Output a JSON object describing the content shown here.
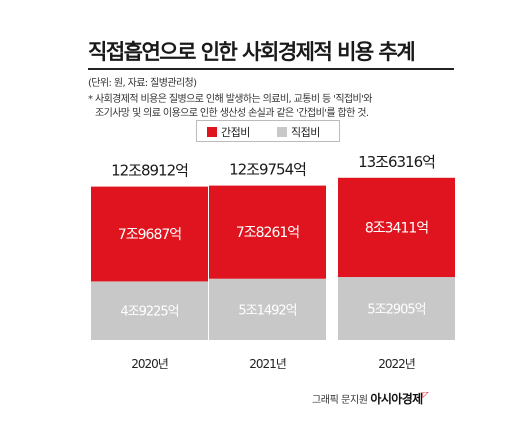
{
  "title": "직접흡연으로 인한 사회경제적 비용 추계",
  "notes": {
    "unit_source": "(단위: 원, 자료: 질병관리청)",
    "footnote_line1": "* 사회경제적 비용은 질병으로 인해 발생하는 의료비, 교통비 등 '직접비'와",
    "footnote_line2": "조기사망 및 의료 이용으로 인한 생산성 손실과 같은 '간접비'를 합한 것."
  },
  "credit": {
    "text": "그래픽 문지원",
    "brand": "아시아경제"
  },
  "colors": {
    "indirect": "#e0141e",
    "direct": "#c8c8c8",
    "indirect_text": "#ffffff",
    "direct_text": "#ffffff"
  },
  "chart_data": {
    "type": "bar",
    "stacked": true,
    "unit": "원",
    "categories": [
      "2020년",
      "2021년",
      "2022년"
    ],
    "totals": [
      1289120,
      1297540,
      1363160
    ],
    "total_labels": [
      "12조8912억",
      "12조9754억",
      "13조6316억"
    ],
    "series": [
      {
        "name": "간접비",
        "values": [
          796870,
          782610,
          834110
        ],
        "labels": [
          "7조9687억",
          "7조8261억",
          "8조3411억"
        ]
      },
      {
        "name": "직접비",
        "values": [
          492250,
          514920,
          529050
        ],
        "labels": [
          "4조9225억",
          "5조1492억",
          "5조2905억"
        ]
      }
    ],
    "legend_position": "top-center",
    "grid": false
  }
}
